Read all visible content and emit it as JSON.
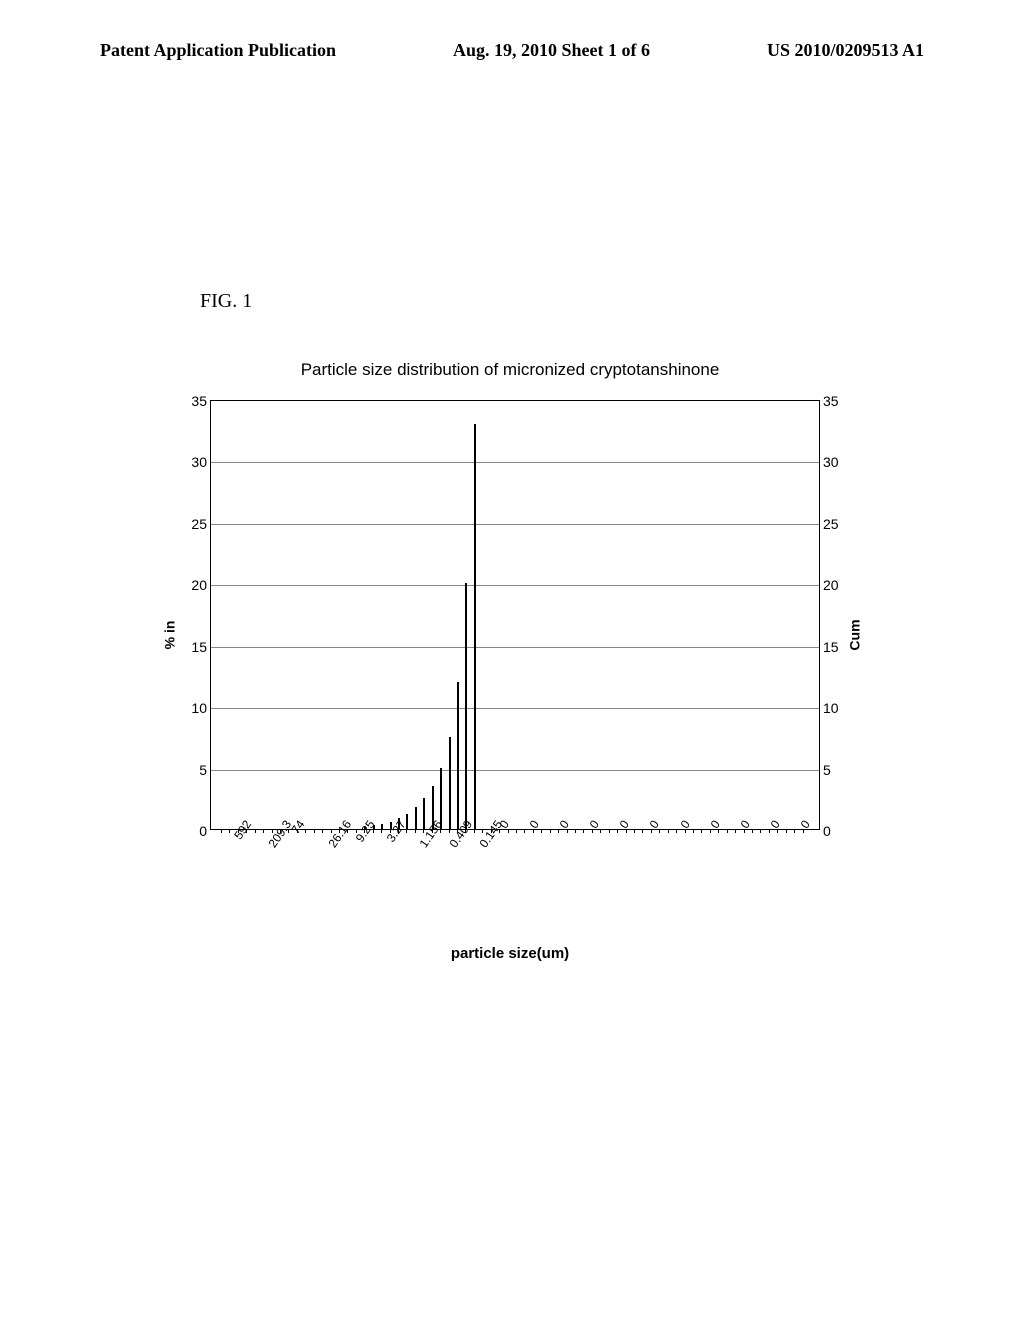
{
  "header": {
    "left": "Patent Application Publication",
    "center": "Aug. 19, 2010  Sheet 1 of 6",
    "right": "US 2010/0209513 A1"
  },
  "figure_label": "FIG. 1",
  "chart": {
    "type": "bar",
    "title": "Particle size distribution of micronized cryptotanshinone",
    "ylabel_left": "% in",
    "ylabel_right": "Cum",
    "xlabel": "particle size(um)",
    "ylim": [
      0,
      35
    ],
    "ytick_step": 5,
    "yticks": [
      0,
      5,
      10,
      15,
      20,
      25,
      30,
      35
    ],
    "xticks": [
      "592",
      "209.3",
      "74",
      "26.16",
      "9.25",
      "3.27",
      "1.156",
      "0.409",
      "0.145",
      "0",
      "0",
      "0",
      "0",
      "0",
      "0",
      "0",
      "0",
      "0",
      "0",
      "0"
    ],
    "bar_color": "#000000",
    "grid_color": "#888888",
    "background_color": "#ffffff",
    "n_bars": 70,
    "bars": [
      {
        "pos": 0,
        "h": 0
      },
      {
        "pos": 1,
        "h": 0
      },
      {
        "pos": 2,
        "h": 0
      },
      {
        "pos": 3,
        "h": 0
      },
      {
        "pos": 4,
        "h": 0
      },
      {
        "pos": 5,
        "h": 0
      },
      {
        "pos": 6,
        "h": 0
      },
      {
        "pos": 7,
        "h": 0
      },
      {
        "pos": 8,
        "h": 0
      },
      {
        "pos": 9,
        "h": 0
      },
      {
        "pos": 10,
        "h": 0
      },
      {
        "pos": 11,
        "h": 0
      },
      {
        "pos": 12,
        "h": 0
      },
      {
        "pos": 13,
        "h": 0
      },
      {
        "pos": 14,
        "h": 0
      },
      {
        "pos": 15,
        "h": 0
      },
      {
        "pos": 16,
        "h": 0
      },
      {
        "pos": 17,
        "h": 0.2
      },
      {
        "pos": 18,
        "h": 0.3
      },
      {
        "pos": 19,
        "h": 0.4
      },
      {
        "pos": 20,
        "h": 0.6
      },
      {
        "pos": 21,
        "h": 0.9
      },
      {
        "pos": 22,
        "h": 1.2
      },
      {
        "pos": 23,
        "h": 1.8
      },
      {
        "pos": 24,
        "h": 2.5
      },
      {
        "pos": 25,
        "h": 3.5
      },
      {
        "pos": 26,
        "h": 5.0
      },
      {
        "pos": 27,
        "h": 7.5
      },
      {
        "pos": 28,
        "h": 12.0
      },
      {
        "pos": 29,
        "h": 20.0
      },
      {
        "pos": 30,
        "h": 33.0
      },
      {
        "pos": 31,
        "h": 0
      },
      {
        "pos": 32,
        "h": 0
      },
      {
        "pos": 33,
        "h": 0
      },
      {
        "pos": 34,
        "h": 0
      },
      {
        "pos": 35,
        "h": 0
      },
      {
        "pos": 36,
        "h": 0
      },
      {
        "pos": 37,
        "h": 0
      },
      {
        "pos": 38,
        "h": 0
      },
      {
        "pos": 39,
        "h": 0
      },
      {
        "pos": 40,
        "h": 0
      },
      {
        "pos": 41,
        "h": 0
      },
      {
        "pos": 42,
        "h": 0
      },
      {
        "pos": 43,
        "h": 0
      },
      {
        "pos": 44,
        "h": 0
      },
      {
        "pos": 45,
        "h": 0
      },
      {
        "pos": 46,
        "h": 0
      },
      {
        "pos": 47,
        "h": 0
      },
      {
        "pos": 48,
        "h": 0
      },
      {
        "pos": 49,
        "h": 0
      },
      {
        "pos": 50,
        "h": 0
      },
      {
        "pos": 51,
        "h": 0
      },
      {
        "pos": 52,
        "h": 0
      },
      {
        "pos": 53,
        "h": 0
      },
      {
        "pos": 54,
        "h": 0
      },
      {
        "pos": 55,
        "h": 0
      },
      {
        "pos": 56,
        "h": 0
      },
      {
        "pos": 57,
        "h": 0
      },
      {
        "pos": 58,
        "h": 0
      },
      {
        "pos": 59,
        "h": 0
      },
      {
        "pos": 60,
        "h": 0
      },
      {
        "pos": 61,
        "h": 0
      },
      {
        "pos": 62,
        "h": 0
      },
      {
        "pos": 63,
        "h": 0
      },
      {
        "pos": 64,
        "h": 0
      },
      {
        "pos": 65,
        "h": 0
      },
      {
        "pos": 66,
        "h": 0
      },
      {
        "pos": 67,
        "h": 0
      },
      {
        "pos": 68,
        "h": 0
      },
      {
        "pos": 69,
        "h": 0
      }
    ]
  }
}
